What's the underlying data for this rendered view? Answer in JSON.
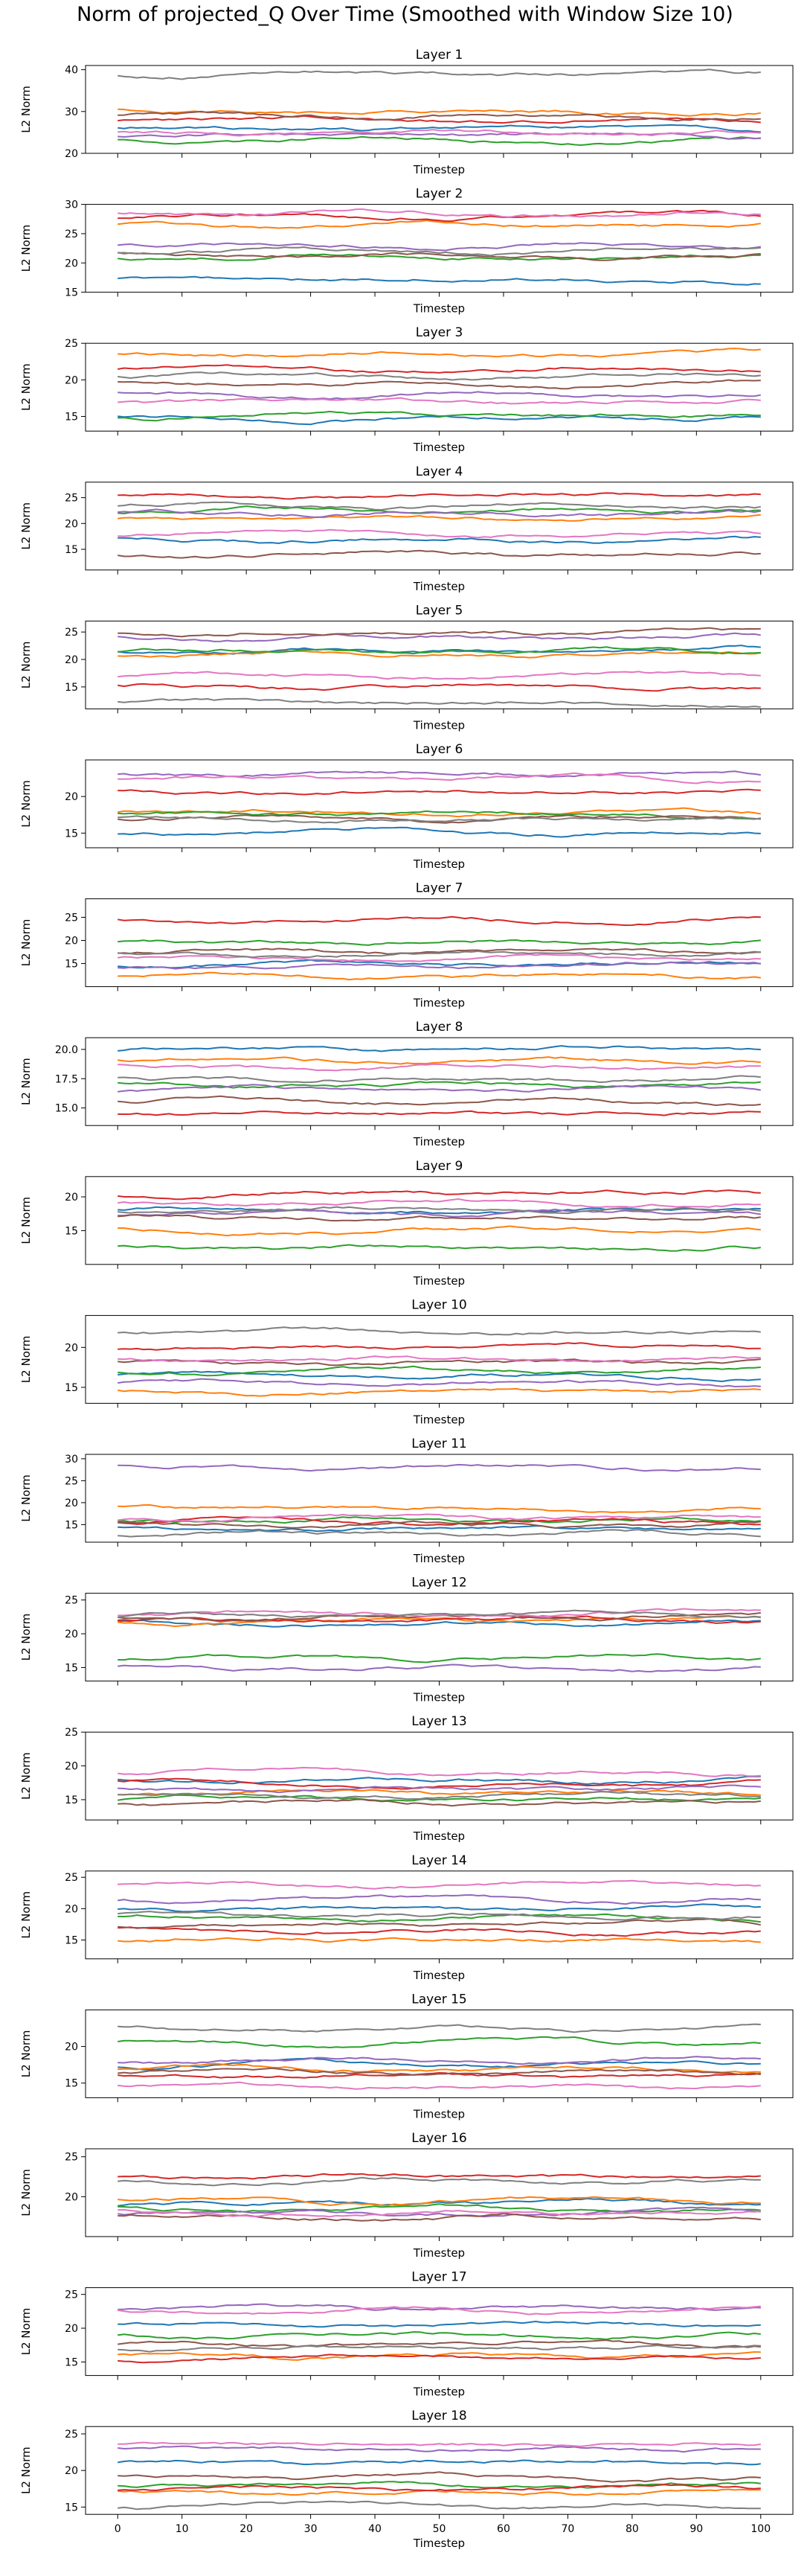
{
  "figure": {
    "title": "Norm of projected_Q Over Time (Smoothed with Window Size 10)"
  },
  "series_colors": [
    "#1f77b4",
    "#ff7f0e",
    "#2ca02c",
    "#d62728",
    "#9467bd",
    "#8c564b",
    "#e377c2",
    "#7f7f7f"
  ],
  "chart_data": [
    {
      "type": "line",
      "title": "Layer 1",
      "xlabel": "Timestep",
      "ylabel": "L2 Norm",
      "xlim": [
        -5,
        105
      ],
      "ylim": [
        20,
        41
      ],
      "xticks": [],
      "yticks": [
        20,
        30,
        40
      ],
      "grid": false,
      "legend": "none",
      "series": [
        {
          "base": 26
        },
        {
          "base": 30
        },
        {
          "base": 23
        },
        {
          "base": 28
        },
        {
          "base": 24
        },
        {
          "base": 29
        },
        {
          "base": 25
        },
        {
          "base": 39
        }
      ]
    },
    {
      "type": "line",
      "title": "Layer 2",
      "xlabel": "Timestep",
      "ylabel": "L2 Norm",
      "xlim": [
        -5,
        105
      ],
      "ylim": [
        15,
        30
      ],
      "xticks": [],
      "yticks": [
        15,
        20,
        25,
        30
      ],
      "grid": false,
      "legend": "none",
      "series": [
        {
          "base": 17.3
        },
        {
          "base": 26.5
        },
        {
          "base": 21
        },
        {
          "base": 28
        },
        {
          "base": 23
        },
        {
          "base": 21.5
        },
        {
          "base": 28.5
        },
        {
          "base": 22
        }
      ]
    },
    {
      "type": "line",
      "title": "Layer 3",
      "xlabel": "Timestep",
      "ylabel": "L2 Norm",
      "xlim": [
        -5,
        105
      ],
      "ylim": [
        13,
        25
      ],
      "xticks": [],
      "yticks": [
        15,
        20,
        25
      ],
      "grid": false,
      "legend": "none",
      "series": [
        {
          "base": 14.8
        },
        {
          "base": 23.5
        },
        {
          "base": 15
        },
        {
          "base": 21.5
        },
        {
          "base": 18
        },
        {
          "base": 19.5
        },
        {
          "base": 17
        },
        {
          "base": 20.5
        }
      ]
    },
    {
      "type": "line",
      "title": "Layer 4",
      "xlabel": "Timestep",
      "ylabel": "L2 Norm",
      "xlim": [
        -5,
        105
      ],
      "ylim": [
        11,
        28
      ],
      "xticks": [],
      "yticks": [
        15,
        20,
        25
      ],
      "grid": false,
      "legend": "none",
      "series": [
        {
          "base": 16.8
        },
        {
          "base": 21
        },
        {
          "base": 22.5
        },
        {
          "base": 25.5
        },
        {
          "base": 22
        },
        {
          "base": 14
        },
        {
          "base": 18
        },
        {
          "base": 23.5
        }
      ]
    },
    {
      "type": "line",
      "title": "Layer 5",
      "xlabel": "Timestep",
      "ylabel": "L2 Norm",
      "xlim": [
        -5,
        105
      ],
      "ylim": [
        11,
        27
      ],
      "xticks": [],
      "yticks": [
        15,
        20,
        25
      ],
      "grid": false,
      "legend": "none",
      "series": [
        {
          "base": 21.5
        },
        {
          "base": 21
        },
        {
          "base": 21.5
        },
        {
          "base": 15
        },
        {
          "base": 24
        },
        {
          "base": 25
        },
        {
          "base": 17
        },
        {
          "base": 12
        }
      ]
    },
    {
      "type": "line",
      "title": "Layer 6",
      "xlabel": "Timestep",
      "ylabel": "L2 Norm",
      "xlim": [
        -5,
        105
      ],
      "ylim": [
        13,
        25
      ],
      "xticks": [],
      "yticks": [
        15,
        20
      ],
      "grid": false,
      "legend": "none",
      "series": [
        {
          "base": 15
        },
        {
          "base": 18
        },
        {
          "base": 17.5
        },
        {
          "base": 20.5
        },
        {
          "base": 23
        },
        {
          "base": 17
        },
        {
          "base": 22.5
        },
        {
          "base": 17
        }
      ]
    },
    {
      "type": "line",
      "title": "Layer 7",
      "xlabel": "Timestep",
      "ylabel": "L2 Norm",
      "xlim": [
        -5,
        105
      ],
      "ylim": [
        10,
        29
      ],
      "xticks": [],
      "yticks": [
        15,
        20,
        25
      ],
      "grid": false,
      "legend": "none",
      "series": [
        {
          "base": 15
        },
        {
          "base": 12.5
        },
        {
          "base": 19.5
        },
        {
          "base": 24.5
        },
        {
          "base": 14.5
        },
        {
          "base": 17.5
        },
        {
          "base": 16
        },
        {
          "base": 17
        }
      ]
    },
    {
      "type": "line",
      "title": "Layer 8",
      "xlabel": "Timestep",
      "ylabel": "L2 Norm",
      "xlim": [
        -5,
        105
      ],
      "ylim": [
        13.5,
        21
      ],
      "xticks": [],
      "yticks": [
        15.0,
        17.5,
        20.0
      ],
      "grid": false,
      "legend": "none",
      "series": [
        {
          "base": 20
        },
        {
          "base": 19
        },
        {
          "base": 17
        },
        {
          "base": 14.5
        },
        {
          "base": 16.5
        },
        {
          "base": 15.5
        },
        {
          "base": 18.5
        },
        {
          "base": 17.5
        }
      ]
    },
    {
      "type": "line",
      "title": "Layer 9",
      "xlabel": "Timestep",
      "ylabel": "L2 Norm",
      "xlim": [
        -5,
        105
      ],
      "ylim": [
        10,
        23
      ],
      "xticks": [],
      "yticks": [
        15,
        20
      ],
      "grid": false,
      "legend": "none",
      "series": [
        {
          "base": 18
        },
        {
          "base": 15
        },
        {
          "base": 12.5
        },
        {
          "base": 20.5
        },
        {
          "base": 17.5
        },
        {
          "base": 17
        },
        {
          "base": 19
        },
        {
          "base": 18
        }
      ]
    },
    {
      "type": "line",
      "title": "Layer 10",
      "xlabel": "Timestep",
      "ylabel": "L2 Norm",
      "xlim": [
        -5,
        105
      ],
      "ylim": [
        13,
        24
      ],
      "xticks": [],
      "yticks": [
        15,
        20
      ],
      "grid": false,
      "legend": "none",
      "series": [
        {
          "base": 16.5
        },
        {
          "base": 14.5
        },
        {
          "base": 17
        },
        {
          "base": 20
        },
        {
          "base": 15.5
        },
        {
          "base": 18
        },
        {
          "base": 18.5
        },
        {
          "base": 22
        }
      ]
    },
    {
      "type": "line",
      "title": "Layer 11",
      "xlabel": "Timestep",
      "ylabel": "L2 Norm",
      "xlim": [
        -5,
        105
      ],
      "ylim": [
        11,
        31
      ],
      "xticks": [],
      "yticks": [
        15,
        20,
        25,
        30
      ],
      "grid": false,
      "legend": "none",
      "series": [
        {
          "base": 14
        },
        {
          "base": 19
        },
        {
          "base": 16
        },
        {
          "base": 15.5
        },
        {
          "base": 28
        },
        {
          "base": 15
        },
        {
          "base": 16.5
        },
        {
          "base": 13
        }
      ]
    },
    {
      "type": "line",
      "title": "Layer 12",
      "xlabel": "Timestep",
      "ylabel": "L2 Norm",
      "xlim": [
        -5,
        105
      ],
      "ylim": [
        13,
        26
      ],
      "xticks": [],
      "yticks": [
        15,
        20,
        25
      ],
      "grid": false,
      "legend": "none",
      "series": [
        {
          "base": 21.5
        },
        {
          "base": 22
        },
        {
          "base": 16.5
        },
        {
          "base": 22
        },
        {
          "base": 15
        },
        {
          "base": 22.5
        },
        {
          "base": 23
        },
        {
          "base": 22.5
        }
      ]
    },
    {
      "type": "line",
      "title": "Layer 13",
      "xlabel": "Timestep",
      "ylabel": "L2 Norm",
      "xlim": [
        -5,
        105
      ],
      "ylim": [
        12,
        25
      ],
      "xticks": [],
      "yticks": [
        15,
        20,
        25
      ],
      "grid": false,
      "legend": "none",
      "series": [
        {
          "base": 18
        },
        {
          "base": 16
        },
        {
          "base": 15
        },
        {
          "base": 17.5
        },
        {
          "base": 16.5
        },
        {
          "base": 14.5
        },
        {
          "base": 19
        },
        {
          "base": 15.5
        }
      ]
    },
    {
      "type": "line",
      "title": "Layer 14",
      "xlabel": "Timestep",
      "ylabel": "L2 Norm",
      "xlim": [
        -5,
        105
      ],
      "ylim": [
        12,
        26
      ],
      "xticks": [],
      "yticks": [
        15,
        20,
        25
      ],
      "grid": false,
      "legend": "none",
      "series": [
        {
          "base": 20
        },
        {
          "base": 15
        },
        {
          "base": 18.5
        },
        {
          "base": 16.5
        },
        {
          "base": 21.5
        },
        {
          "base": 17.5
        },
        {
          "base": 24
        },
        {
          "base": 19
        }
      ]
    },
    {
      "type": "line",
      "title": "Layer 15",
      "xlabel": "Timestep",
      "ylabel": "L2 Norm",
      "xlim": [
        -5,
        105
      ],
      "ylim": [
        13,
        25
      ],
      "xticks": [],
      "yticks": [
        15,
        20
      ],
      "grid": false,
      "legend": "none",
      "series": [
        {
          "base": 17.5
        },
        {
          "base": 17
        },
        {
          "base": 20.5
        },
        {
          "base": 16
        },
        {
          "base": 18
        },
        {
          "base": 16.5
        },
        {
          "base": 14.5
        },
        {
          "base": 22.5
        }
      ]
    },
    {
      "type": "line",
      "title": "Layer 16",
      "xlabel": "Timestep",
      "ylabel": "L2 Norm",
      "xlim": [
        -5,
        105
      ],
      "ylim": [
        15,
        26
      ],
      "xticks": [],
      "yticks": [
        20,
        25
      ],
      "grid": false,
      "legend": "none",
      "series": [
        {
          "base": 19
        },
        {
          "base": 19.5
        },
        {
          "base": 18.5
        },
        {
          "base": 22.5
        },
        {
          "base": 18
        },
        {
          "base": 17.5
        },
        {
          "base": 18
        },
        {
          "base": 22
        }
      ]
    },
    {
      "type": "line",
      "title": "Layer 17",
      "xlabel": "Timestep",
      "ylabel": "L2 Norm",
      "xlim": [
        -5,
        105
      ],
      "ylim": [
        13,
        26
      ],
      "xticks": [],
      "yticks": [
        15,
        20,
        25
      ],
      "grid": false,
      "legend": "none",
      "series": [
        {
          "base": 20.5
        },
        {
          "base": 16
        },
        {
          "base": 19
        },
        {
          "base": 15.5
        },
        {
          "base": 23
        },
        {
          "base": 17.5
        },
        {
          "base": 22.5
        },
        {
          "base": 17
        }
      ]
    },
    {
      "type": "line",
      "title": "Layer 18",
      "xlabel": "Timestep",
      "ylabel": "L2 Norm",
      "xlim": [
        -5,
        105
      ],
      "ylim": [
        14,
        26
      ],
      "xticks": [
        0,
        10,
        20,
        30,
        40,
        50,
        60,
        70,
        80,
        90,
        100
      ],
      "yticks": [
        15,
        20,
        25
      ],
      "grid": false,
      "legend": "none",
      "series": [
        {
          "base": 21
        },
        {
          "base": 17
        },
        {
          "base": 18
        },
        {
          "base": 17.5
        },
        {
          "base": 23
        },
        {
          "base": 19
        },
        {
          "base": 23.5
        },
        {
          "base": 15
        }
      ]
    }
  ]
}
